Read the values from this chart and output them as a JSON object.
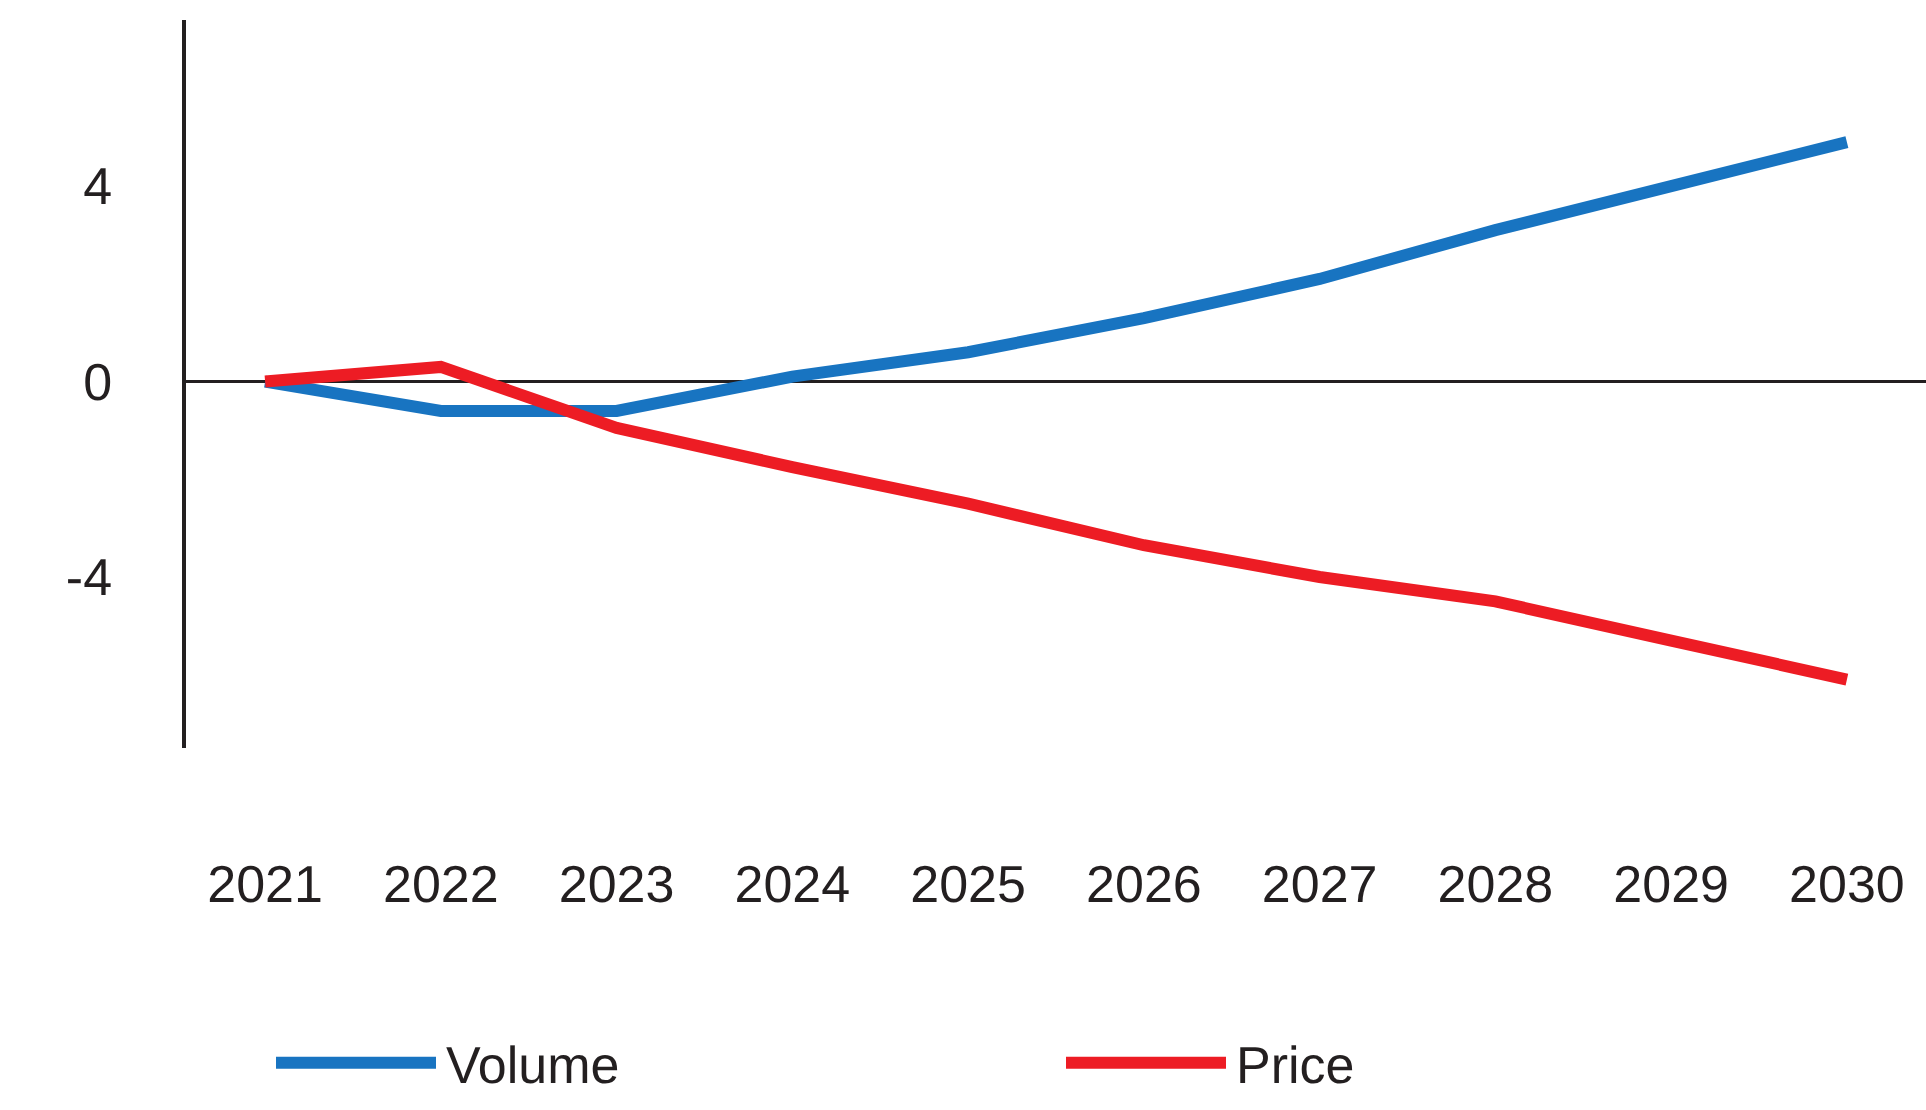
{
  "chart_data": {
    "type": "line",
    "x": [
      2021,
      2022,
      2023,
      2024,
      2025,
      2026,
      2027,
      2028,
      2029,
      2030
    ],
    "series": [
      {
        "name": "Volume",
        "color": "#1874c1",
        "values": [
          0,
          -0.6,
          -0.6,
          0.1,
          0.6,
          1.3,
          2.1,
          3.1,
          4.0,
          4.9
        ]
      },
      {
        "name": "Price",
        "color": "#ed1c24",
        "values": [
          0,
          0.3,
          -0.95,
          -1.75,
          -2.5,
          -3.35,
          -4.0,
          -4.5,
          -5.3,
          -6.1
        ]
      }
    ],
    "xlim": [
      2020.55,
      2030.45
    ],
    "xticks": [
      2021,
      2022,
      2023,
      2024,
      2025,
      2026,
      2027,
      2028,
      2029,
      2030
    ],
    "ylim": [
      -7.5,
      7.4
    ],
    "yticks": [
      {
        "value": -4,
        "label": "-4"
      },
      0,
      4
    ],
    "ref_lines": [
      {
        "axis": "y",
        "value": 0,
        "color": "#231f20",
        "line_style": "solid"
      }
    ],
    "legend": "bottom",
    "marker": "none",
    "line_style": "solid"
  }
}
